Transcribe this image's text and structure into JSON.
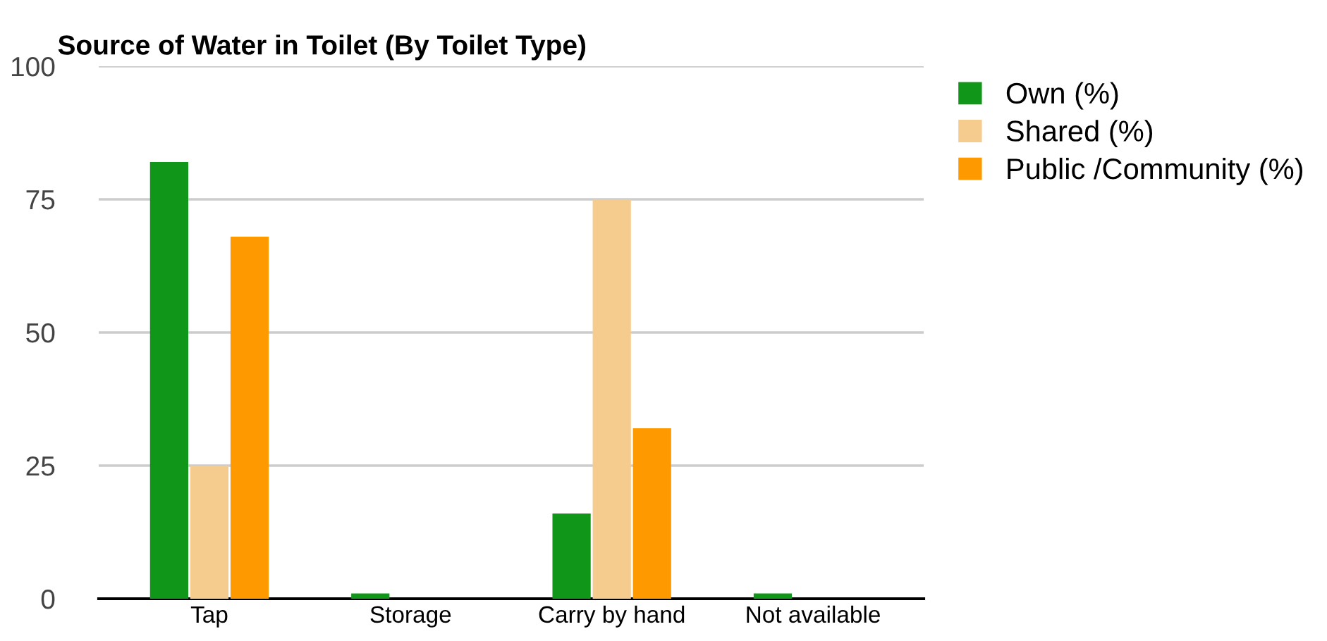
{
  "chart_data": {
    "type": "bar",
    "title": "Source of Water in Toilet (By Toilet Type)",
    "categories": [
      "Tap",
      "Storage",
      "Carry by hand",
      "Not available"
    ],
    "series": [
      {
        "name": "Own (%)",
        "color": "#109618",
        "values": [
          82,
          1,
          16,
          1
        ]
      },
      {
        "name": "Shared (%)",
        "color": "#f6cb8e",
        "values": [
          25,
          0,
          75,
          0
        ]
      },
      {
        "name": "Public /Community (%)",
        "color": "#ff9900",
        "values": [
          68,
          0,
          32,
          0
        ]
      }
    ],
    "ylim": [
      0,
      100
    ],
    "yticks": [
      0,
      25,
      50,
      75,
      100
    ],
    "grid": "y",
    "legend": "right"
  }
}
